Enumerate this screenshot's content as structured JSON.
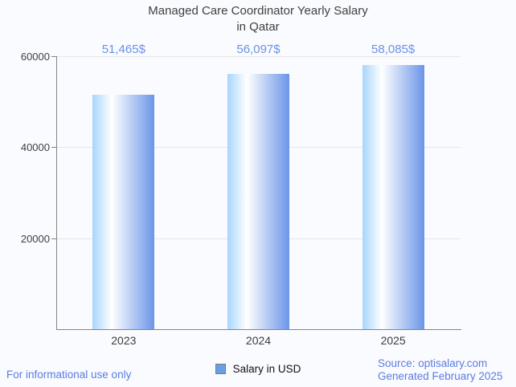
{
  "header": {
    "title_line1": "Managed Care Coordinator Yearly Salary",
    "title_line2": "in Qatar"
  },
  "chart_data": {
    "type": "bar",
    "title": "Managed Care Coordinator Yearly Salary in Qatar",
    "categories": [
      "2023",
      "2024",
      "2025"
    ],
    "series": [
      {
        "name": "Salary in USD",
        "values": [
          51465,
          56097,
          58085
        ]
      }
    ],
    "value_labels": [
      "51,465$",
      "56,097$",
      "58,085$"
    ],
    "xlabel": "",
    "ylabel": "",
    "ylim": [
      0,
      60000
    ],
    "yticks": [
      20000,
      40000,
      60000
    ],
    "ytick_labels": [
      "20000",
      "40000",
      "60000"
    ],
    "grid": true,
    "legend_position": "bottom"
  },
  "legend": {
    "label": "Salary in USD"
  },
  "footer": {
    "disclaimer": "For informational use only",
    "source": "Source: optisalary.com",
    "generated": "Generated February 2025"
  },
  "colors": {
    "background": "#fafbff",
    "value_label": "#6a92e4",
    "footer_link": "#5b7cdf",
    "legend_swatch": "#68a0e6",
    "axis": "#848484",
    "gridline": "#e7e7e7",
    "bar_gradient_left": "#a8d5fd",
    "bar_gradient_mid": "#ffffff",
    "bar_gradient_right": "#6b95e8"
  }
}
